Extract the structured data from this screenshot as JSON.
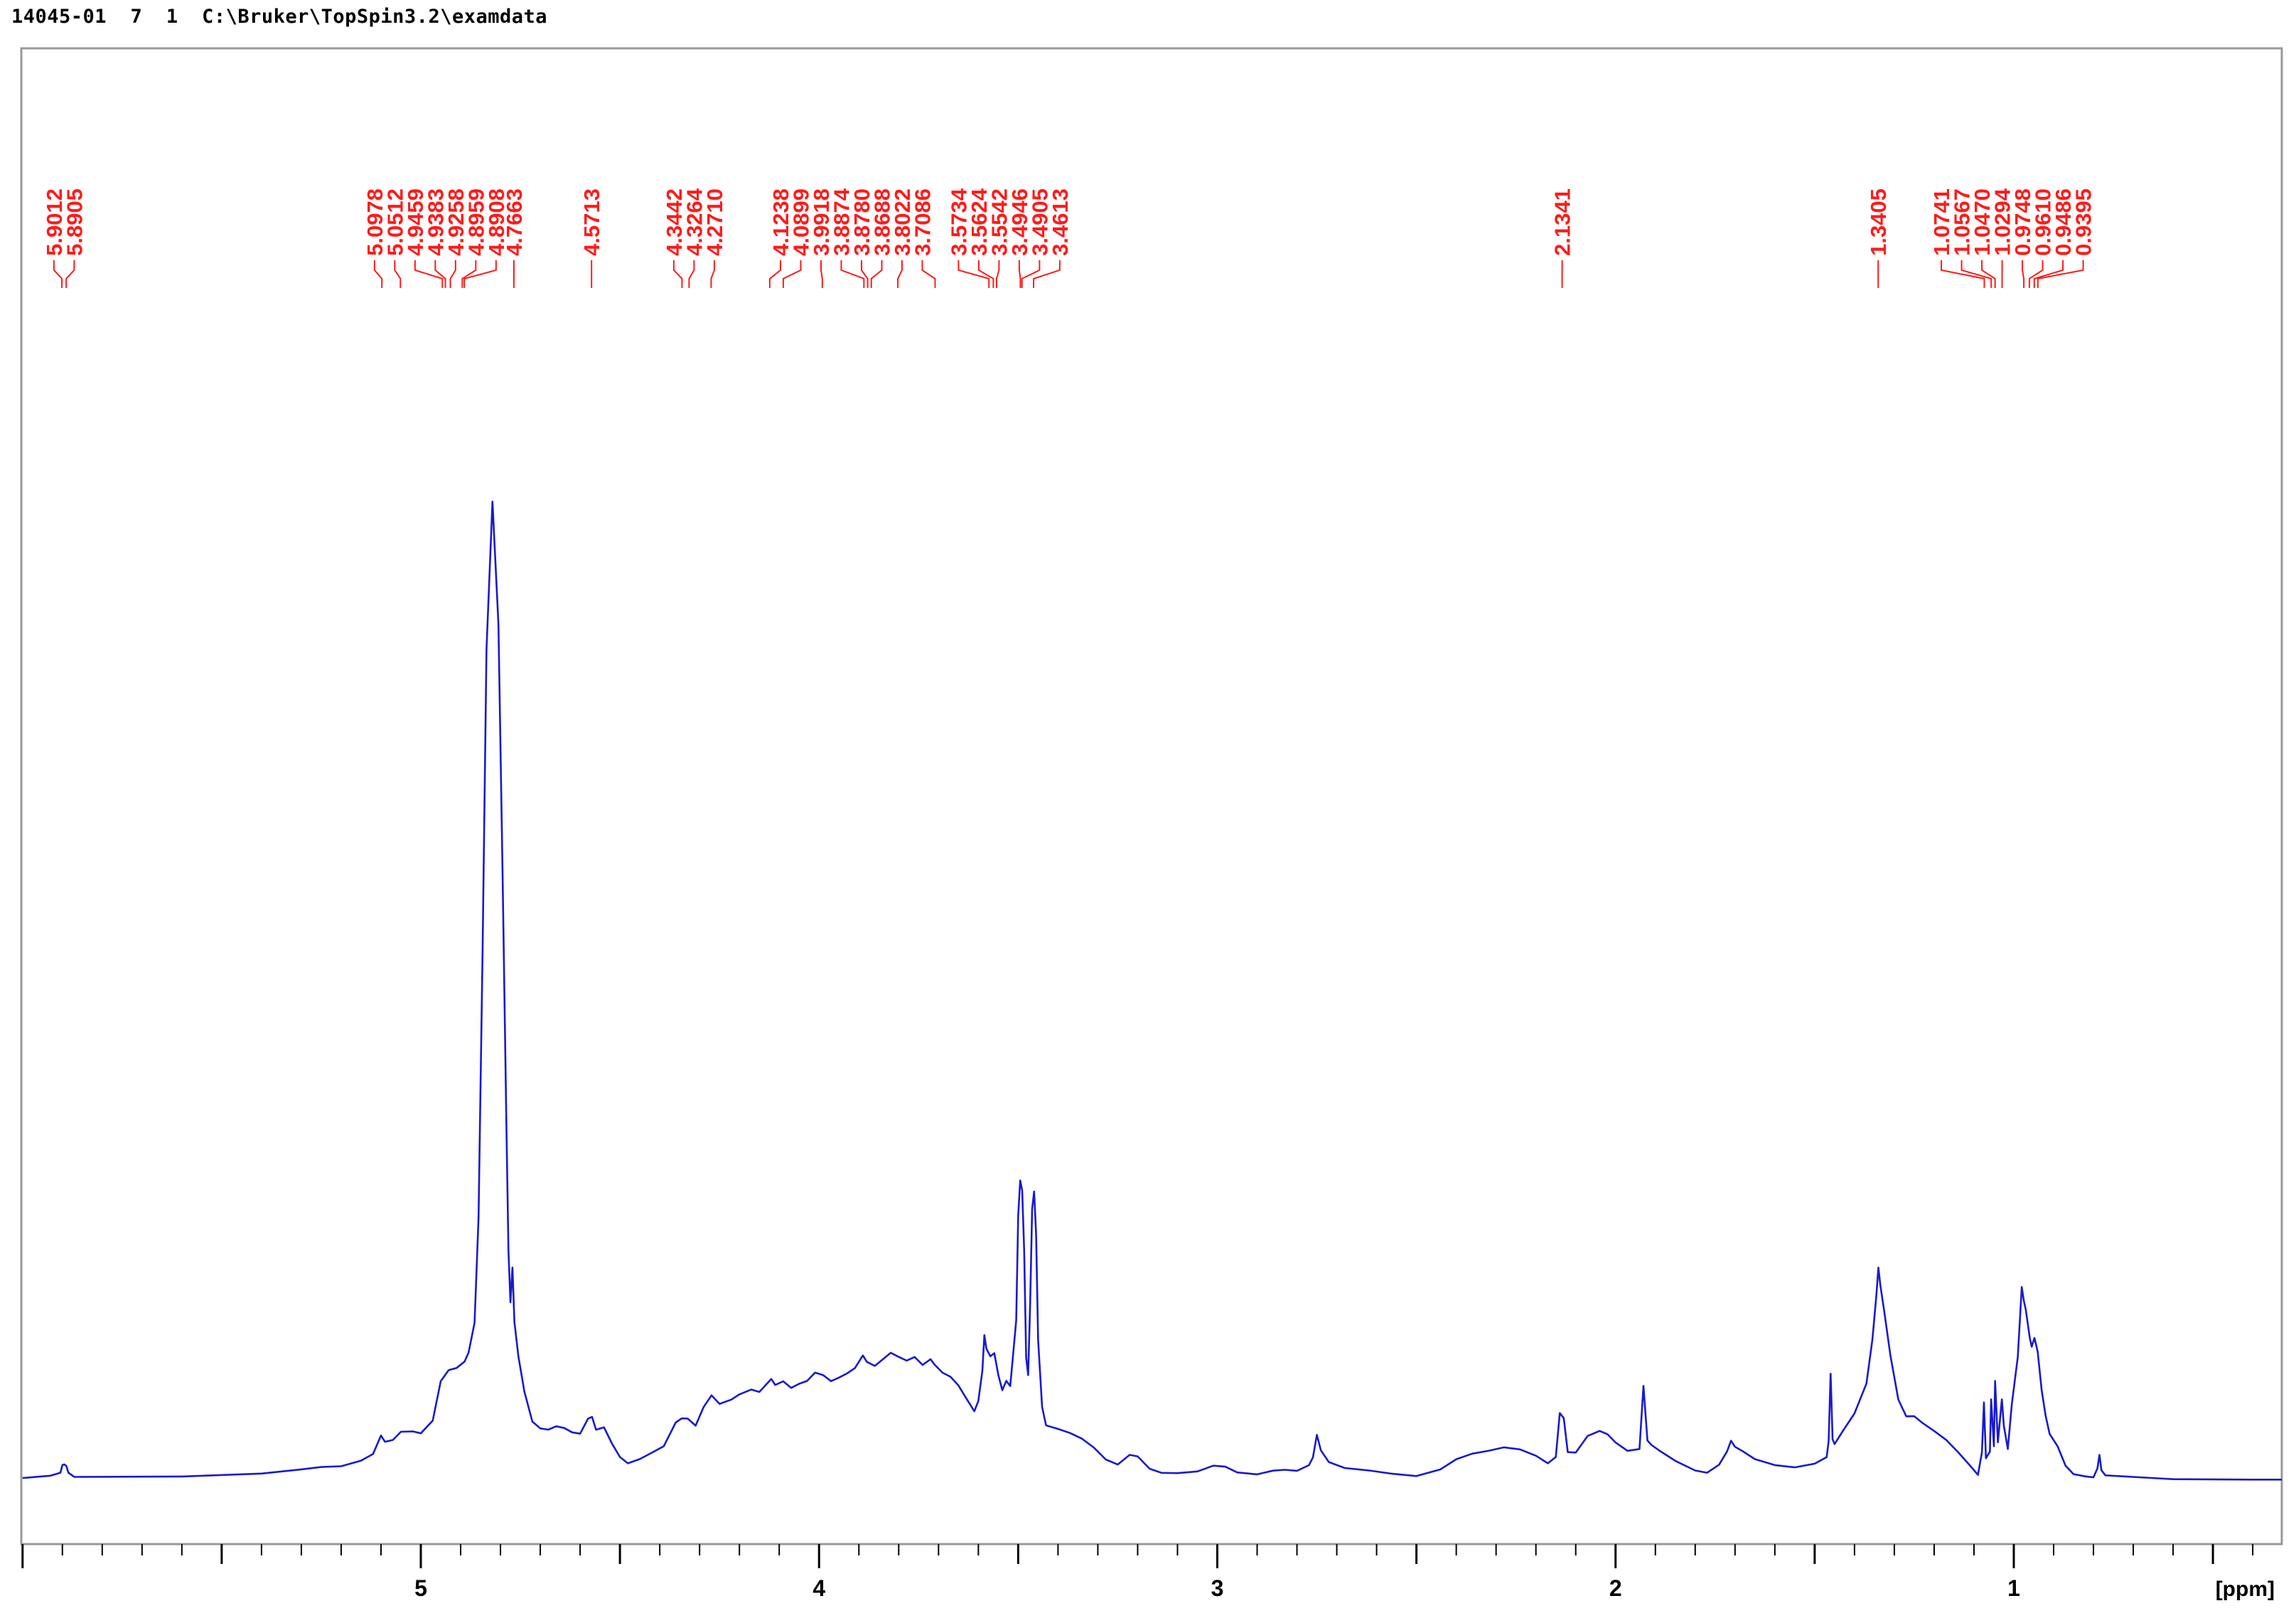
{
  "header": {
    "text": "14045-01  7  1  C:\\Bruker\\TopSpin3.2\\examdata"
  },
  "colors": {
    "spectrum": "#1a1acc",
    "peak_labels": "#ff1a1a",
    "axis": "#000000",
    "frame": "#999999"
  },
  "chart_data": {
    "type": "line",
    "title": "",
    "xlabel": "[ppm]",
    "ylabel": "",
    "x_reversed": true,
    "xlim": [
      6.0,
      0.05
    ],
    "ylim": [
      0,
      100
    ],
    "grid": false,
    "x_ticks": [
      5,
      4,
      3,
      2,
      1
    ],
    "x_tick_labels": [
      "5",
      "4",
      "3",
      "2",
      "1"
    ],
    "peak_labels": [
      "5.9012",
      "5.8905",
      "5.0978",
      "5.0512",
      "4.9459",
      "4.9383",
      "4.9258",
      "4.8959",
      "4.8908",
      "4.7663",
      "4.5713",
      "4.3442",
      "4.3264",
      "4.2710",
      "4.1238",
      "4.0899",
      "3.9918",
      "3.8874",
      "3.8780",
      "3.8688",
      "3.8022",
      "3.7086",
      "3.5734",
      "3.5624",
      "3.5542",
      "3.4946",
      "3.4905",
      "3.4613",
      "2.1341",
      "1.3405",
      "1.0741",
      "1.0567",
      "1.0470",
      "1.0294",
      "0.9748",
      "0.9610",
      "0.9486",
      "0.9395"
    ],
    "series": [
      {
        "type": "spectrum",
        "values": [
          [
            6.0,
            0.0
          ],
          [
            5.93,
            0.1
          ],
          [
            5.905,
            0.6
          ],
          [
            5.9,
            1.4
          ],
          [
            5.895,
            1.5
          ],
          [
            5.89,
            1.3
          ],
          [
            5.885,
            0.5
          ],
          [
            5.87,
            0.1
          ],
          [
            5.6,
            0.3
          ],
          [
            5.4,
            0.6
          ],
          [
            5.3,
            1.0
          ],
          [
            5.25,
            1.3
          ],
          [
            5.2,
            1.5
          ],
          [
            5.15,
            2.0
          ],
          [
            5.12,
            2.8
          ],
          [
            5.1,
            4.8
          ],
          [
            5.09,
            4.0
          ],
          [
            5.07,
            4.3
          ],
          [
            5.05,
            5.2
          ],
          [
            5.02,
            5.3
          ],
          [
            5.0,
            5.0
          ],
          [
            4.97,
            6.5
          ],
          [
            4.95,
            11.0
          ],
          [
            4.93,
            12.5
          ],
          [
            4.91,
            12.8
          ],
          [
            4.89,
            13.5
          ],
          [
            4.88,
            14.5
          ],
          [
            4.865,
            18.0
          ],
          [
            4.855,
            30.0
          ],
          [
            4.845,
            60.0
          ],
          [
            4.835,
            95.0
          ],
          [
            4.82,
            112.0
          ],
          [
            4.805,
            98.0
          ],
          [
            4.795,
            70.0
          ],
          [
            4.785,
            40.0
          ],
          [
            4.78,
            26.0
          ],
          [
            4.775,
            20.0
          ],
          [
            4.77,
            24.0
          ],
          [
            4.765,
            18.0
          ],
          [
            4.755,
            14.0
          ],
          [
            4.74,
            10.0
          ],
          [
            4.72,
            6.5
          ],
          [
            4.7,
            5.8
          ],
          [
            4.68,
            5.7
          ],
          [
            4.66,
            6.0
          ],
          [
            4.64,
            5.6
          ],
          [
            4.62,
            5.2
          ],
          [
            4.6,
            5.0
          ],
          [
            4.58,
            6.8
          ],
          [
            4.57,
            7.0
          ],
          [
            4.56,
            5.5
          ],
          [
            4.54,
            5.8
          ],
          [
            4.52,
            4.0
          ],
          [
            4.5,
            2.5
          ],
          [
            4.48,
            1.8
          ],
          [
            4.45,
            2.2
          ],
          [
            4.42,
            3.0
          ],
          [
            4.39,
            3.8
          ],
          [
            4.36,
            6.5
          ],
          [
            4.345,
            7.0
          ],
          [
            4.33,
            6.8
          ],
          [
            4.31,
            6.0
          ],
          [
            4.29,
            8.0
          ],
          [
            4.27,
            9.5
          ],
          [
            4.25,
            8.5
          ],
          [
            4.22,
            9.0
          ],
          [
            4.2,
            9.5
          ],
          [
            4.17,
            10.3
          ],
          [
            4.15,
            10.0
          ],
          [
            4.12,
            11.5
          ],
          [
            4.11,
            10.8
          ],
          [
            4.09,
            11.2
          ],
          [
            4.07,
            10.5
          ],
          [
            4.05,
            11.0
          ],
          [
            4.03,
            11.3
          ],
          [
            4.01,
            12.0
          ],
          [
            3.99,
            11.8
          ],
          [
            3.97,
            11.0
          ],
          [
            3.95,
            11.5
          ],
          [
            3.93,
            12.0
          ],
          [
            3.91,
            12.5
          ],
          [
            3.89,
            14.0
          ],
          [
            3.88,
            13.5
          ],
          [
            3.86,
            13.0
          ],
          [
            3.84,
            13.8
          ],
          [
            3.82,
            14.5
          ],
          [
            3.8,
            14.0
          ],
          [
            3.78,
            13.6
          ],
          [
            3.76,
            14.0
          ],
          [
            3.74,
            13.0
          ],
          [
            3.72,
            13.5
          ],
          [
            3.71,
            13.0
          ],
          [
            3.69,
            12.0
          ],
          [
            3.67,
            11.5
          ],
          [
            3.65,
            10.5
          ],
          [
            3.63,
            9.0
          ],
          [
            3.61,
            7.5
          ],
          [
            3.6,
            9.0
          ],
          [
            3.59,
            12.5
          ],
          [
            3.585,
            16.5
          ],
          [
            3.58,
            15.0
          ],
          [
            3.57,
            14.0
          ],
          [
            3.56,
            14.5
          ],
          [
            3.55,
            12.0
          ],
          [
            3.54,
            10.0
          ],
          [
            3.53,
            11.0
          ],
          [
            3.52,
            10.5
          ],
          [
            3.505,
            18.0
          ],
          [
            3.5,
            30.0
          ],
          [
            3.495,
            34.0
          ],
          [
            3.49,
            33.0
          ],
          [
            3.485,
            26.0
          ],
          [
            3.48,
            14.0
          ],
          [
            3.475,
            12.0
          ],
          [
            3.47,
            20.0
          ],
          [
            3.465,
            31.0
          ],
          [
            3.46,
            33.0
          ],
          [
            3.455,
            28.0
          ],
          [
            3.45,
            16.0
          ],
          [
            3.44,
            8.0
          ],
          [
            3.43,
            6.0
          ],
          [
            3.4,
            5.5
          ],
          [
            3.37,
            5.0
          ],
          [
            3.34,
            4.5
          ],
          [
            3.31,
            3.5
          ],
          [
            3.28,
            2.0
          ],
          [
            3.25,
            1.5
          ],
          [
            3.22,
            2.8
          ],
          [
            3.2,
            2.5
          ],
          [
            3.17,
            1.2
          ],
          [
            3.14,
            0.7
          ],
          [
            3.1,
            0.6
          ],
          [
            3.05,
            0.8
          ],
          [
            3.01,
            1.6
          ],
          [
            2.98,
            1.2
          ],
          [
            2.95,
            0.5
          ],
          [
            2.9,
            0.4
          ],
          [
            2.86,
            0.7
          ],
          [
            2.83,
            0.8
          ],
          [
            2.8,
            0.8
          ],
          [
            2.77,
            1.4
          ],
          [
            2.76,
            2.4
          ],
          [
            2.75,
            5.0
          ],
          [
            2.74,
            3.2
          ],
          [
            2.72,
            2.0
          ],
          [
            2.68,
            1.2
          ],
          [
            2.62,
            0.9
          ],
          [
            2.56,
            0.5
          ],
          [
            2.5,
            0.3
          ],
          [
            2.44,
            0.9
          ],
          [
            2.4,
            2.0
          ],
          [
            2.36,
            2.8
          ],
          [
            2.32,
            3.1
          ],
          [
            2.28,
            3.4
          ],
          [
            2.24,
            3.2
          ],
          [
            2.2,
            2.4
          ],
          [
            2.17,
            1.7
          ],
          [
            2.15,
            2.5
          ],
          [
            2.14,
            7.6
          ],
          [
            2.13,
            7.0
          ],
          [
            2.12,
            3.0
          ],
          [
            2.1,
            3.0
          ],
          [
            2.07,
            5.0
          ],
          [
            2.04,
            5.5
          ],
          [
            2.02,
            5.0
          ],
          [
            2.0,
            4.0
          ],
          [
            1.97,
            3.0
          ],
          [
            1.94,
            3.2
          ],
          [
            1.93,
            10.5
          ],
          [
            1.92,
            4.2
          ],
          [
            1.91,
            3.8
          ],
          [
            1.89,
            3.2
          ],
          [
            1.85,
            2.0
          ],
          [
            1.8,
            0.9
          ],
          [
            1.77,
            0.7
          ],
          [
            1.74,
            1.6
          ],
          [
            1.72,
            3.2
          ],
          [
            1.71,
            4.4
          ],
          [
            1.7,
            3.6
          ],
          [
            1.68,
            3.0
          ],
          [
            1.65,
            2.0
          ],
          [
            1.6,
            1.4
          ],
          [
            1.55,
            1.1
          ],
          [
            1.5,
            1.5
          ],
          [
            1.47,
            2.4
          ],
          [
            1.465,
            4.2
          ],
          [
            1.46,
            12.0
          ],
          [
            1.455,
            4.5
          ],
          [
            1.45,
            4.0
          ],
          [
            1.43,
            5.5
          ],
          [
            1.4,
            7.5
          ],
          [
            1.37,
            11.0
          ],
          [
            1.355,
            16.0
          ],
          [
            1.345,
            21.0
          ],
          [
            1.34,
            24.0
          ],
          [
            1.335,
            22.0
          ],
          [
            1.325,
            19.0
          ],
          [
            1.31,
            14.0
          ],
          [
            1.29,
            9.0
          ],
          [
            1.27,
            7.0
          ],
          [
            1.25,
            7.0
          ],
          [
            1.23,
            6.5
          ],
          [
            1.2,
            5.5
          ],
          [
            1.17,
            4.5
          ],
          [
            1.14,
            3.0
          ],
          [
            1.11,
            1.5
          ],
          [
            1.09,
            0.5
          ],
          [
            1.08,
            3.0
          ],
          [
            1.075,
            8.5
          ],
          [
            1.07,
            2.2
          ],
          [
            1.06,
            3.0
          ],
          [
            1.057,
            9.0
          ],
          [
            1.05,
            3.5
          ],
          [
            1.047,
            11.0
          ],
          [
            1.04,
            4.0
          ],
          [
            1.03,
            9.0
          ],
          [
            1.025,
            6.0
          ],
          [
            1.015,
            3.5
          ],
          [
            1.005,
            8.5
          ],
          [
            0.99,
            14.0
          ],
          [
            0.98,
            22.0
          ],
          [
            0.975,
            20.5
          ],
          [
            0.97,
            19.5
          ],
          [
            0.96,
            16.0
          ],
          [
            0.955,
            15.0
          ],
          [
            0.948,
            16.0
          ],
          [
            0.94,
            14.5
          ],
          [
            0.93,
            10.0
          ],
          [
            0.92,
            7.0
          ],
          [
            0.91,
            5.0
          ],
          [
            0.89,
            3.5
          ],
          [
            0.87,
            1.5
          ],
          [
            0.85,
            0.5
          ],
          [
            0.82,
            0.3
          ],
          [
            0.8,
            0.2
          ],
          [
            0.79,
            1.2
          ],
          [
            0.785,
            2.8
          ],
          [
            0.78,
            1.0
          ],
          [
            0.77,
            0.2
          ],
          [
            0.6,
            -0.2
          ],
          [
            0.4,
            -0.3
          ],
          [
            0.2,
            -0.3
          ],
          [
            0.05,
            -0.3
          ]
        ]
      }
    ]
  }
}
